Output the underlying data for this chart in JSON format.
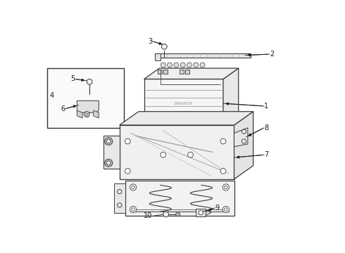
{
  "bg_color": "#ffffff",
  "lc": "#3a3a3a",
  "tc": "#1a1a1a",
  "lw_main": 0.9,
  "lw_thin": 0.5,
  "fs_label": 7.0,
  "figsize": [
    4.9,
    3.6
  ],
  "dpi": 100
}
